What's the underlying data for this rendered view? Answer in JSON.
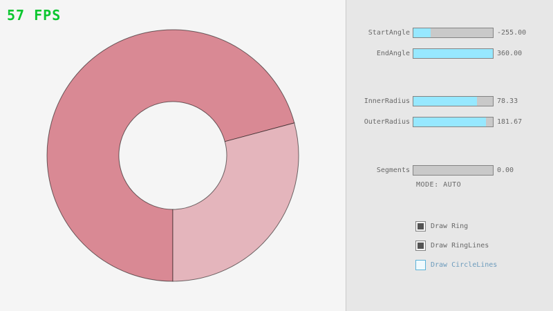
{
  "fps": "57 FPS",
  "colors": {
    "fps_green": "#0bc62f",
    "slider_fill_cyan": "#97e8ff",
    "ring_dark": "#d98994",
    "ring_light": "#e4b5bc",
    "panel_bg": "#e7e7e7",
    "text_gray": "#686868",
    "focused_blue": "#5bb2d9"
  },
  "ring": {
    "start_angle": "-255.00",
    "end_angle": "360.00",
    "inner_radius": "78.33",
    "outer_radius": "181.67",
    "segments": "0.00"
  },
  "panel": {
    "sliders": [
      {
        "id": "start-angle",
        "label": "StartAngle",
        "value": "-255.00",
        "fill_pct": 22
      },
      {
        "id": "end-angle",
        "label": "EndAngle",
        "value": "360.00",
        "fill_pct": 100
      },
      {
        "id": "inner-radius",
        "label": "InnerRadius",
        "value": "78.33",
        "fill_pct": 80
      },
      {
        "id": "outer-radius",
        "label": "OuterRadius",
        "value": "181.67",
        "fill_pct": 91
      },
      {
        "id": "segments",
        "label": "Segments",
        "value": "0.00",
        "fill_pct": 0
      }
    ],
    "mode_text": "MODE: AUTO",
    "checkboxes": [
      {
        "id": "draw-ring",
        "label": "Draw Ring",
        "checked": true,
        "focused": false
      },
      {
        "id": "draw-ringlines",
        "label": "Draw RingLines",
        "checked": true,
        "focused": false
      },
      {
        "id": "draw-circlelines",
        "label": "Draw CircleLines",
        "checked": false,
        "focused": true
      }
    ]
  }
}
